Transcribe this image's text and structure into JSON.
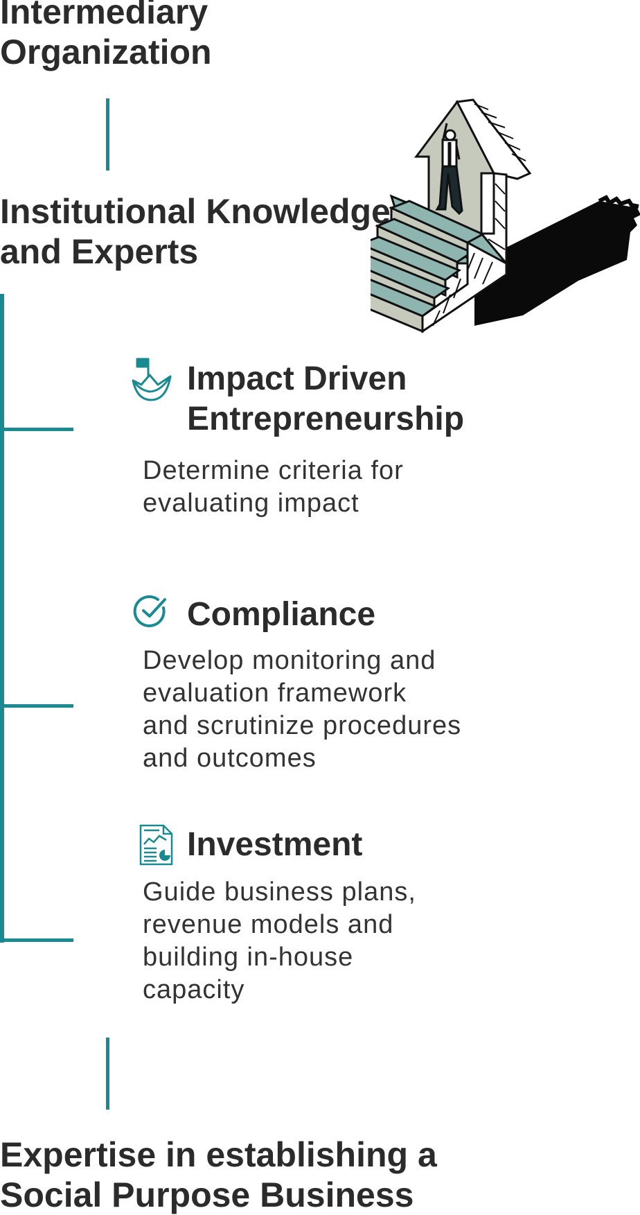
{
  "headings": {
    "top": [
      "Intermediary",
      "Organization"
    ],
    "middle": [
      "Institutional Knowledge",
      "and Experts"
    ],
    "bottom": [
      "Expertise in establishing a",
      "Social Purpose Business"
    ]
  },
  "items": [
    {
      "icon": "boat-flag-icon",
      "title": [
        "Impact Driven",
        "Entrepreneurship"
      ],
      "description": [
        "Determine criteria for",
        "evaluating impact"
      ]
    },
    {
      "icon": "check-circle-icon",
      "title": [
        "Compliance"
      ],
      "description": [
        "Develop monitoring and",
        "evaluation framework",
        "and scrutinize procedures",
        "and outcomes"
      ]
    },
    {
      "icon": "report-document-icon",
      "title": [
        "Investment"
      ],
      "description": [
        "Guide business plans,",
        "revenue models and",
        "building in-house",
        "capacity"
      ]
    }
  ],
  "colors": {
    "accent": "#1a8a92",
    "text": "#2b2b2b",
    "stair_light": "#c5cabd",
    "stair_teal": "#8fb5b1"
  },
  "illustration": "stairs-to-arrow-figure-illustration"
}
